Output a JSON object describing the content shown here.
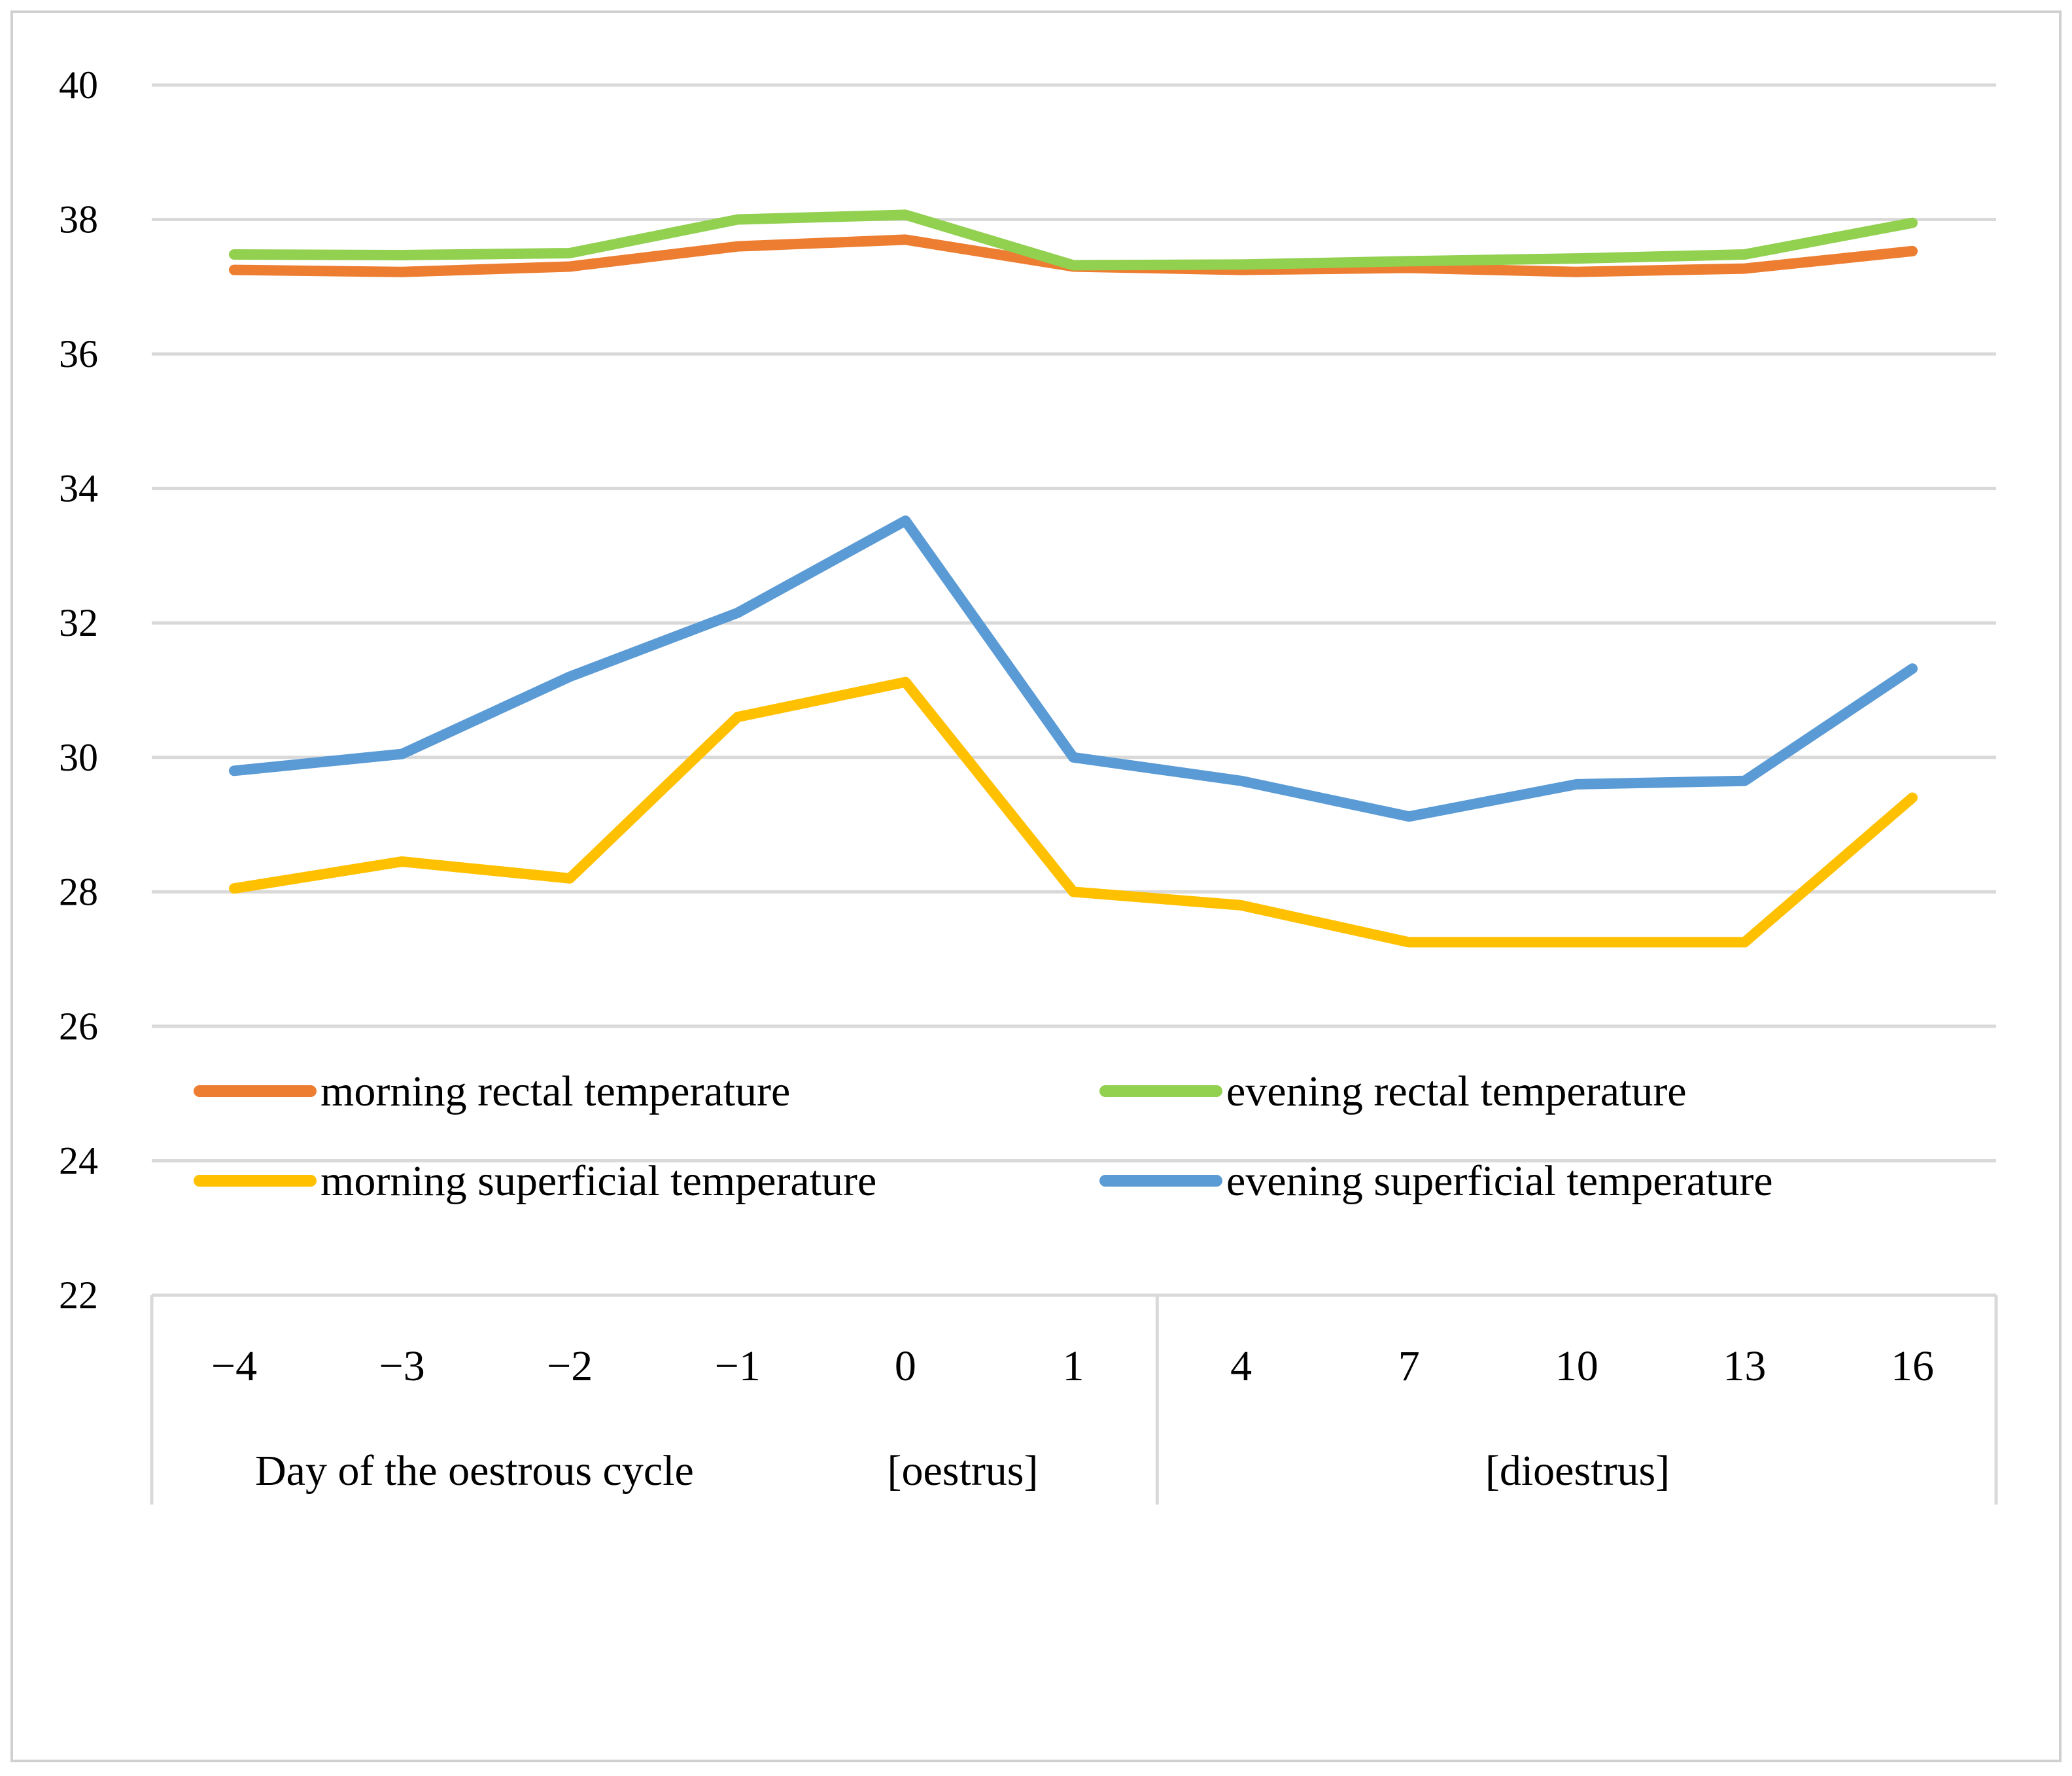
{
  "chart_data": {
    "type": "line",
    "title": "",
    "xlabel": "Day of the oestrous cycle",
    "ylabel": "",
    "ylim": [
      22,
      40
    ],
    "ytick_step": 2,
    "grid": true,
    "categories": [
      "−4",
      "−3",
      "−2",
      "−1",
      "0",
      "1",
      "4",
      "7",
      "10",
      "13",
      "16"
    ],
    "phase_groups": [
      {
        "label": "Day of the oestrous cycle",
        "span": [
          0,
          5
        ]
      },
      {
        "label": "[oestrus]",
        "span": [
          0,
          5
        ]
      },
      {
        "label": "[dioestrus]",
        "span": [
          6,
          10
        ]
      }
    ],
    "legend_position": "inside-bottom",
    "series": [
      {
        "name": "morning rectal temperature",
        "color": "#ED7D31",
        "values": [
          37.25,
          37.22,
          37.3,
          37.6,
          37.7,
          37.3,
          37.25,
          37.28,
          37.22,
          37.27,
          37.53
        ]
      },
      {
        "name": "evening rectal temperature",
        "color": "#92D050",
        "values": [
          37.48,
          37.47,
          37.5,
          38.0,
          38.07,
          37.32,
          37.33,
          37.38,
          37.42,
          37.48,
          37.95
        ]
      },
      {
        "name": "morning superficial temperature",
        "color": "#FFC000",
        "values": [
          28.05,
          28.45,
          28.2,
          30.6,
          31.12,
          28.0,
          27.8,
          27.25,
          27.25,
          27.25,
          29.4
        ]
      },
      {
        "name": "evening superficial temperature",
        "color": "#5B9BD5",
        "values": [
          29.8,
          30.05,
          31.2,
          32.15,
          33.52,
          30.0,
          29.65,
          29.12,
          29.6,
          29.65,
          31.32
        ]
      }
    ]
  }
}
